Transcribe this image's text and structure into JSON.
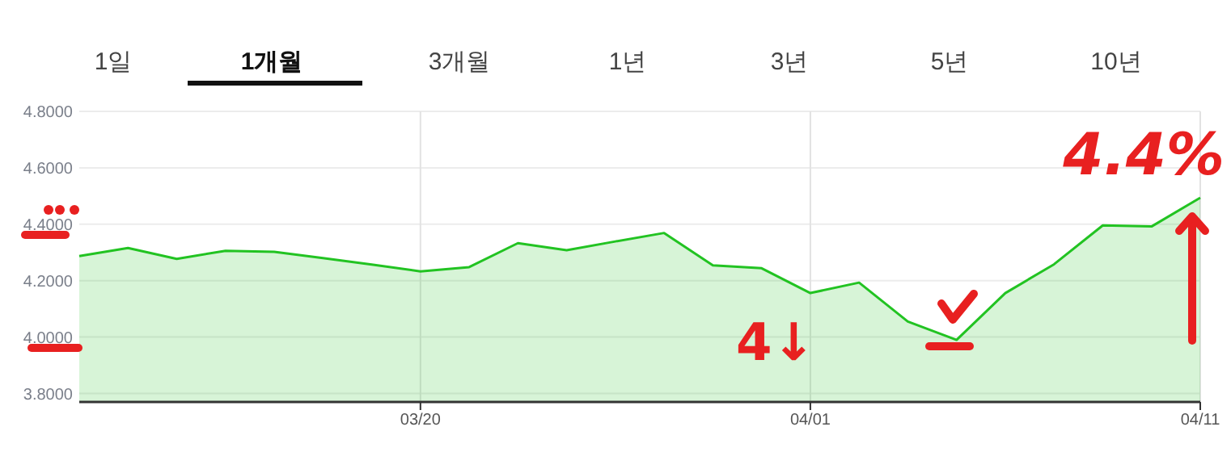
{
  "chart_data": {
    "type": "area",
    "categories": [
      null,
      null,
      null,
      null,
      null,
      null,
      null,
      "03/20",
      null,
      null,
      null,
      null,
      null,
      null,
      null,
      "04/01",
      null,
      null,
      null,
      null,
      null,
      null,
      null,
      "04/11"
    ],
    "series": [
      {
        "color": "#22c322",
        "values": [
          4.287,
          4.316,
          4.277,
          4.306,
          4.302,
          4.28,
          4.257,
          4.233,
          4.248,
          4.333,
          4.308,
          4.339,
          4.369,
          4.254,
          4.244,
          4.156,
          4.193,
          4.055,
          3.99,
          4.156,
          4.258,
          4.396,
          4.392,
          4.494
        ]
      }
    ],
    "ylim": [
      3.77,
      4.8
    ],
    "yticks": [
      {
        "value": 3.8,
        "label": "3.8000"
      },
      {
        "value": 4.0,
        "label": "4.0000"
      },
      {
        "value": 4.2,
        "label": "4.2000"
      },
      {
        "value": 4.4,
        "label": "4.4000"
      },
      {
        "value": 4.6,
        "label": "4.6000"
      },
      {
        "value": 4.8,
        "label": "4.8000"
      }
    ],
    "grid": true,
    "annotations": [
      "1일",
      "1개월",
      "3개월",
      "1년",
      "3년",
      "5년",
      "10년",
      "4.4%",
      "4↓"
    ]
  }
}
